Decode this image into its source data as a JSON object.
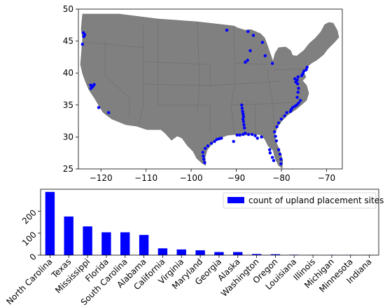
{
  "chart_data": [
    {
      "type": "scatter",
      "xlim": [
        -125,
        -66.5
      ],
      "ylim": [
        25,
        50
      ],
      "x_ticks": [
        -120,
        -110,
        -100,
        -90,
        -80,
        -70
      ],
      "y_ticks": [
        25,
        30,
        35,
        40,
        45,
        50
      ],
      "grid": false,
      "land_color": "#808080",
      "point_color": "#0000ff",
      "points": [
        [
          -123.9,
          46.3
        ],
        [
          -123.6,
          46.0
        ],
        [
          -123.8,
          45.7
        ],
        [
          -124.1,
          44.5
        ],
        [
          -122.3,
          38.1
        ],
        [
          -122.0,
          38.0
        ],
        [
          -121.8,
          37.9
        ],
        [
          -121.5,
          38.2
        ],
        [
          -122.2,
          37.6
        ],
        [
          -120.5,
          34.6
        ],
        [
          -118.3,
          33.8
        ],
        [
          -88.8,
          35.0
        ],
        [
          -88.7,
          34.5
        ],
        [
          -88.6,
          34.0
        ],
        [
          -88.5,
          33.6
        ],
        [
          -88.4,
          33.2
        ],
        [
          -88.5,
          32.8
        ],
        [
          -88.4,
          32.4
        ],
        [
          -88.3,
          31.9
        ],
        [
          -88.2,
          31.4
        ],
        [
          -97.0,
          26.0
        ],
        [
          -97.2,
          26.5
        ],
        [
          -97.3,
          27.0
        ],
        [
          -97.4,
          27.6
        ],
        [
          -96.9,
          28.2
        ],
        [
          -96.3,
          28.6
        ],
        [
          -95.5,
          29.0
        ],
        [
          -94.8,
          29.3
        ],
        [
          -94.3,
          29.6
        ],
        [
          -93.8,
          29.7
        ],
        [
          -93.3,
          29.8
        ],
        [
          -90.6,
          29.3
        ],
        [
          -89.8,
          30.3
        ],
        [
          -89.2,
          30.3
        ],
        [
          -88.5,
          30.4
        ],
        [
          -88.0,
          30.6
        ],
        [
          -87.3,
          30.4
        ],
        [
          -86.5,
          30.4
        ],
        [
          -85.8,
          30.2
        ],
        [
          -85.3,
          29.8
        ],
        [
          -84.4,
          30.0
        ],
        [
          -82.6,
          28.0
        ],
        [
          -82.5,
          27.5
        ],
        [
          -82.0,
          26.8
        ],
        [
          -81.7,
          26.3
        ],
        [
          -80.1,
          25.8
        ],
        [
          -80.1,
          26.5
        ],
        [
          -80.3,
          27.3
        ],
        [
          -80.6,
          28.0
        ],
        [
          -81.1,
          29.4
        ],
        [
          -81.3,
          30.1
        ],
        [
          -81.5,
          30.8
        ],
        [
          -81.0,
          31.6
        ],
        [
          -80.6,
          32.2
        ],
        [
          -80.0,
          32.8
        ],
        [
          -79.3,
          33.3
        ],
        [
          -78.8,
          33.8
        ],
        [
          -78.0,
          34.0
        ],
        [
          -77.8,
          34.3
        ],
        [
          -77.5,
          34.6
        ],
        [
          -77.0,
          34.8
        ],
        [
          -76.6,
          35.0
        ],
        [
          -76.2,
          35.3
        ],
        [
          -75.8,
          35.7
        ],
        [
          -76.5,
          36.2
        ],
        [
          -76.3,
          37.0
        ],
        [
          -76.2,
          37.6
        ],
        [
          -76.4,
          38.3
        ],
        [
          -76.5,
          38.9
        ],
        [
          -76.3,
          39.4
        ],
        [
          -75.5,
          39.6
        ],
        [
          -75.2,
          39.9
        ],
        [
          -75.0,
          40.3
        ],
        [
          -74.5,
          40.5
        ],
        [
          -74.3,
          40.9
        ],
        [
          -76.8,
          38.6
        ],
        [
          -77.0,
          39.1
        ],
        [
          -87.4,
          46.5
        ],
        [
          -87.5,
          42.0
        ],
        [
          -86.9,
          43.5
        ],
        [
          -86.2,
          45.9
        ],
        [
          -88.0,
          41.7
        ],
        [
          -83.6,
          42.7
        ],
        [
          -84.2,
          44.8
        ],
        [
          -82.0,
          41.5
        ],
        [
          -92.1,
          46.7
        ]
      ]
    },
    {
      "type": "bar",
      "categories": [
        "North Carolina",
        "Texas",
        "Mississippi",
        "Florida",
        "South Carolina",
        "Alabama",
        "California",
        "Virginia",
        "Maryland",
        "Georgia",
        "Alaska",
        "Washington",
        "Oregon",
        "Louisiana",
        "Illinois",
        "Michigan",
        "Minnesota",
        "Indiana"
      ],
      "series": [
        {
          "name": "count of upland placement sites",
          "values": [
            288,
            176,
            131,
            104,
            104,
            92,
            31,
            26,
            22,
            14,
            14,
            5,
            4,
            2,
            1,
            1,
            1,
            1
          ]
        }
      ],
      "ylim": [
        0,
        300
      ],
      "y_ticks": [
        0,
        100,
        200
      ],
      "grid": false,
      "bar_color": "#0000ff",
      "legend_position": "top-right"
    }
  ]
}
